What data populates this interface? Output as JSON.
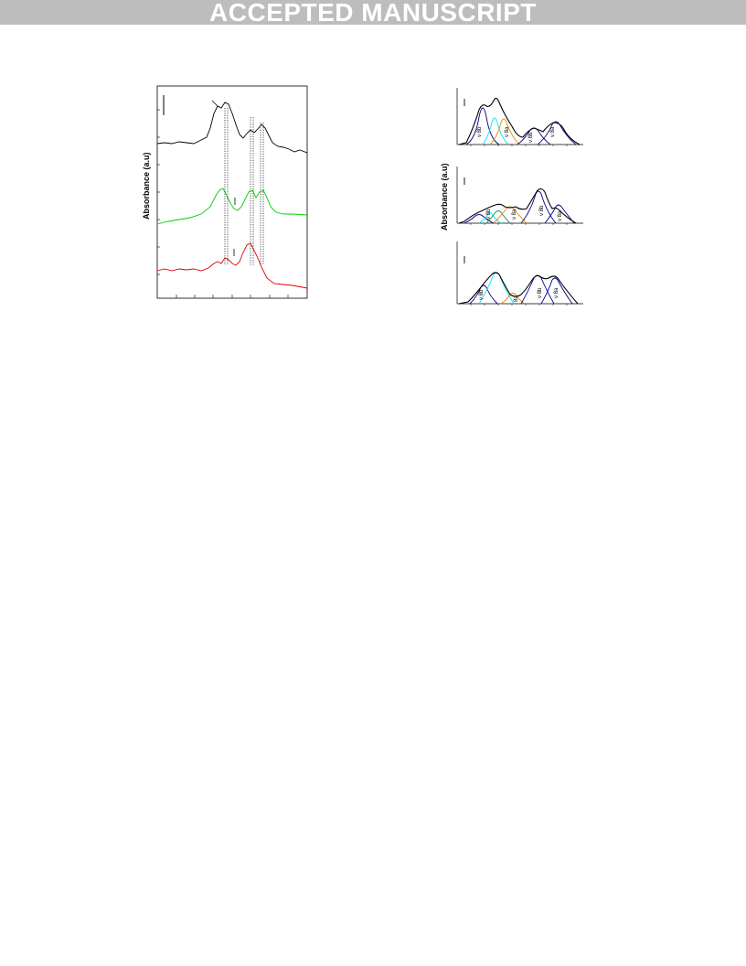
{
  "banner": {
    "text": "ACCEPTED MANUSCRIPT"
  },
  "left_figure": {
    "ylabel": "Absorbance (a.u)",
    "traces": [
      {
        "color": "#000000"
      },
      {
        "color": "#00cc00"
      },
      {
        "color": "#dd0000"
      }
    ]
  },
  "right_figure": {
    "ylabel": "Absorbance  (a.u)",
    "panels": [
      {
        "labels": [
          "ν 8b",
          "ν 8a",
          "ν 8b",
          "ν 8a"
        ]
      },
      {
        "labels": [
          "ν 8b",
          "ν 8a",
          "ν 8b",
          "ν 8a"
        ]
      },
      {
        "labels": [
          "ν 8b",
          "8a",
          "ν 8b",
          "ν 8a"
        ]
      }
    ]
  },
  "colors": {
    "banner_bg": "#bdbdbd",
    "navy": "#00008b",
    "cyan": "#00e5ee",
    "orange": "#e08a00",
    "fit_black": "#000000"
  }
}
